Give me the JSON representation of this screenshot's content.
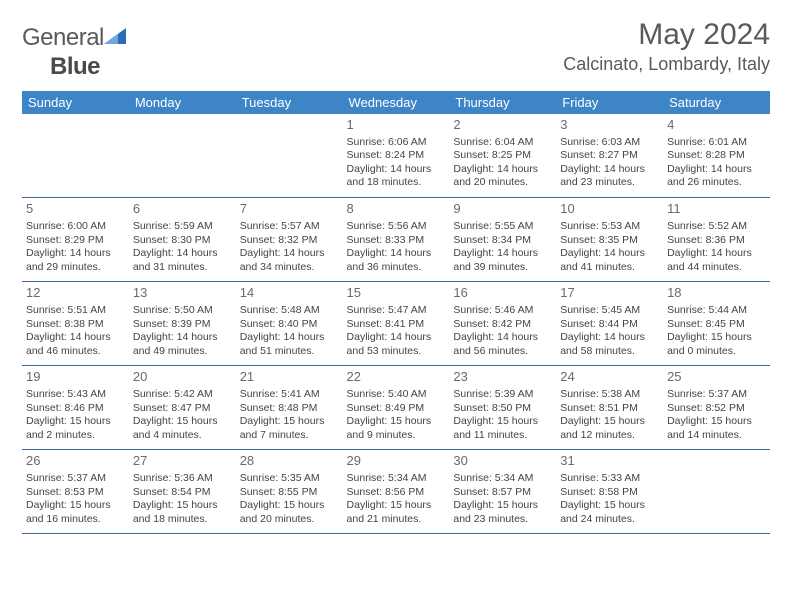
{
  "logo": {
    "text1": "General",
    "text2": "Blue"
  },
  "title": {
    "month_year": "May 2024",
    "location": "Calcinato, Lombardy, Italy"
  },
  "colors": {
    "header_bg": "#3d85c6",
    "header_text": "#ffffff",
    "grid_line": "#3d6a99",
    "body_text": "#444444",
    "logo_gray": "#5a5a5a",
    "logo_blue": "#2a6fb5"
  },
  "day_headers": [
    "Sunday",
    "Monday",
    "Tuesday",
    "Wednesday",
    "Thursday",
    "Friday",
    "Saturday"
  ],
  "weeks": [
    [
      null,
      null,
      null,
      {
        "n": "1",
        "sr": "Sunrise: 6:06 AM",
        "ss": "Sunset: 8:24 PM",
        "d1": "Daylight: 14 hours",
        "d2": "and 18 minutes."
      },
      {
        "n": "2",
        "sr": "Sunrise: 6:04 AM",
        "ss": "Sunset: 8:25 PM",
        "d1": "Daylight: 14 hours",
        "d2": "and 20 minutes."
      },
      {
        "n": "3",
        "sr": "Sunrise: 6:03 AM",
        "ss": "Sunset: 8:27 PM",
        "d1": "Daylight: 14 hours",
        "d2": "and 23 minutes."
      },
      {
        "n": "4",
        "sr": "Sunrise: 6:01 AM",
        "ss": "Sunset: 8:28 PM",
        "d1": "Daylight: 14 hours",
        "d2": "and 26 minutes."
      }
    ],
    [
      {
        "n": "5",
        "sr": "Sunrise: 6:00 AM",
        "ss": "Sunset: 8:29 PM",
        "d1": "Daylight: 14 hours",
        "d2": "and 29 minutes."
      },
      {
        "n": "6",
        "sr": "Sunrise: 5:59 AM",
        "ss": "Sunset: 8:30 PM",
        "d1": "Daylight: 14 hours",
        "d2": "and 31 minutes."
      },
      {
        "n": "7",
        "sr": "Sunrise: 5:57 AM",
        "ss": "Sunset: 8:32 PM",
        "d1": "Daylight: 14 hours",
        "d2": "and 34 minutes."
      },
      {
        "n": "8",
        "sr": "Sunrise: 5:56 AM",
        "ss": "Sunset: 8:33 PM",
        "d1": "Daylight: 14 hours",
        "d2": "and 36 minutes."
      },
      {
        "n": "9",
        "sr": "Sunrise: 5:55 AM",
        "ss": "Sunset: 8:34 PM",
        "d1": "Daylight: 14 hours",
        "d2": "and 39 minutes."
      },
      {
        "n": "10",
        "sr": "Sunrise: 5:53 AM",
        "ss": "Sunset: 8:35 PM",
        "d1": "Daylight: 14 hours",
        "d2": "and 41 minutes."
      },
      {
        "n": "11",
        "sr": "Sunrise: 5:52 AM",
        "ss": "Sunset: 8:36 PM",
        "d1": "Daylight: 14 hours",
        "d2": "and 44 minutes."
      }
    ],
    [
      {
        "n": "12",
        "sr": "Sunrise: 5:51 AM",
        "ss": "Sunset: 8:38 PM",
        "d1": "Daylight: 14 hours",
        "d2": "and 46 minutes."
      },
      {
        "n": "13",
        "sr": "Sunrise: 5:50 AM",
        "ss": "Sunset: 8:39 PM",
        "d1": "Daylight: 14 hours",
        "d2": "and 49 minutes."
      },
      {
        "n": "14",
        "sr": "Sunrise: 5:48 AM",
        "ss": "Sunset: 8:40 PM",
        "d1": "Daylight: 14 hours",
        "d2": "and 51 minutes."
      },
      {
        "n": "15",
        "sr": "Sunrise: 5:47 AM",
        "ss": "Sunset: 8:41 PM",
        "d1": "Daylight: 14 hours",
        "d2": "and 53 minutes."
      },
      {
        "n": "16",
        "sr": "Sunrise: 5:46 AM",
        "ss": "Sunset: 8:42 PM",
        "d1": "Daylight: 14 hours",
        "d2": "and 56 minutes."
      },
      {
        "n": "17",
        "sr": "Sunrise: 5:45 AM",
        "ss": "Sunset: 8:44 PM",
        "d1": "Daylight: 14 hours",
        "d2": "and 58 minutes."
      },
      {
        "n": "18",
        "sr": "Sunrise: 5:44 AM",
        "ss": "Sunset: 8:45 PM",
        "d1": "Daylight: 15 hours",
        "d2": "and 0 minutes."
      }
    ],
    [
      {
        "n": "19",
        "sr": "Sunrise: 5:43 AM",
        "ss": "Sunset: 8:46 PM",
        "d1": "Daylight: 15 hours",
        "d2": "and 2 minutes."
      },
      {
        "n": "20",
        "sr": "Sunrise: 5:42 AM",
        "ss": "Sunset: 8:47 PM",
        "d1": "Daylight: 15 hours",
        "d2": "and 4 minutes."
      },
      {
        "n": "21",
        "sr": "Sunrise: 5:41 AM",
        "ss": "Sunset: 8:48 PM",
        "d1": "Daylight: 15 hours",
        "d2": "and 7 minutes."
      },
      {
        "n": "22",
        "sr": "Sunrise: 5:40 AM",
        "ss": "Sunset: 8:49 PM",
        "d1": "Daylight: 15 hours",
        "d2": "and 9 minutes."
      },
      {
        "n": "23",
        "sr": "Sunrise: 5:39 AM",
        "ss": "Sunset: 8:50 PM",
        "d1": "Daylight: 15 hours",
        "d2": "and 11 minutes."
      },
      {
        "n": "24",
        "sr": "Sunrise: 5:38 AM",
        "ss": "Sunset: 8:51 PM",
        "d1": "Daylight: 15 hours",
        "d2": "and 12 minutes."
      },
      {
        "n": "25",
        "sr": "Sunrise: 5:37 AM",
        "ss": "Sunset: 8:52 PM",
        "d1": "Daylight: 15 hours",
        "d2": "and 14 minutes."
      }
    ],
    [
      {
        "n": "26",
        "sr": "Sunrise: 5:37 AM",
        "ss": "Sunset: 8:53 PM",
        "d1": "Daylight: 15 hours",
        "d2": "and 16 minutes."
      },
      {
        "n": "27",
        "sr": "Sunrise: 5:36 AM",
        "ss": "Sunset: 8:54 PM",
        "d1": "Daylight: 15 hours",
        "d2": "and 18 minutes."
      },
      {
        "n": "28",
        "sr": "Sunrise: 5:35 AM",
        "ss": "Sunset: 8:55 PM",
        "d1": "Daylight: 15 hours",
        "d2": "and 20 minutes."
      },
      {
        "n": "29",
        "sr": "Sunrise: 5:34 AM",
        "ss": "Sunset: 8:56 PM",
        "d1": "Daylight: 15 hours",
        "d2": "and 21 minutes."
      },
      {
        "n": "30",
        "sr": "Sunrise: 5:34 AM",
        "ss": "Sunset: 8:57 PM",
        "d1": "Daylight: 15 hours",
        "d2": "and 23 minutes."
      },
      {
        "n": "31",
        "sr": "Sunrise: 5:33 AM",
        "ss": "Sunset: 8:58 PM",
        "d1": "Daylight: 15 hours",
        "d2": "and 24 minutes."
      },
      null
    ]
  ]
}
